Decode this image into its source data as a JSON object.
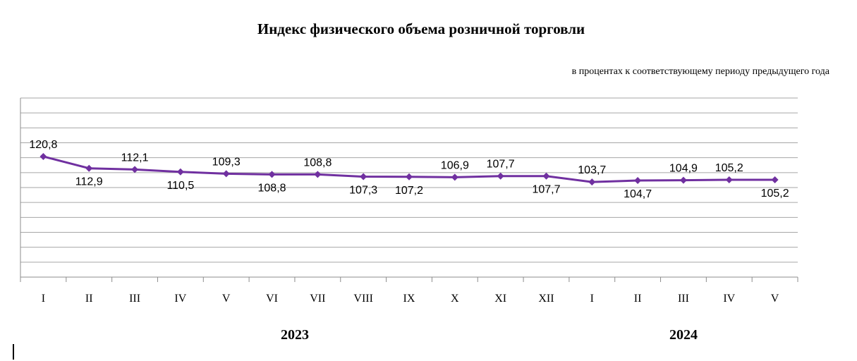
{
  "chart_data": {
    "type": "line",
    "title": "Индекс физического объема розничной торговли",
    "subtitle": "в процентах к соответствующему периоду предыдущего года",
    "categories": [
      "I",
      "II",
      "III",
      "IV",
      "V",
      "VI",
      "VII",
      "VIII",
      "IX",
      "X",
      "XI",
      "XII",
      "I",
      "II",
      "III",
      "IV",
      "V"
    ],
    "groups": [
      {
        "label": "2023",
        "count": 12
      },
      {
        "label": "2024",
        "count": 5
      }
    ],
    "series": [
      {
        "color": "#7030a0",
        "values": [
          120.8,
          112.9,
          112.1,
          110.5,
          109.3,
          108.8,
          108.8,
          107.3,
          107.2,
          106.9,
          107.7,
          107.7,
          103.7,
          104.7,
          104.9,
          105.2,
          105.2
        ],
        "labels": [
          "120,8",
          "112,9",
          "112,1",
          "110,5",
          "109,3",
          "108,8",
          "108,8",
          "107,3",
          "107,2",
          "106,9",
          "107,7",
          "107,7",
          "103,7",
          "104,7",
          "104,9",
          "105,2",
          "105,2"
        ],
        "label_positions": [
          "above",
          "below",
          "above",
          "below",
          "above",
          "below",
          "above",
          "below",
          "below",
          "above",
          "above",
          "below",
          "above",
          "below",
          "above",
          "above",
          "below"
        ]
      }
    ],
    "ylim": [
      40,
      160
    ],
    "y_tick_step": 10,
    "y_axis_labels_shown": false,
    "grid": true,
    "legend": "none",
    "xlabel": "",
    "ylabel": ""
  }
}
